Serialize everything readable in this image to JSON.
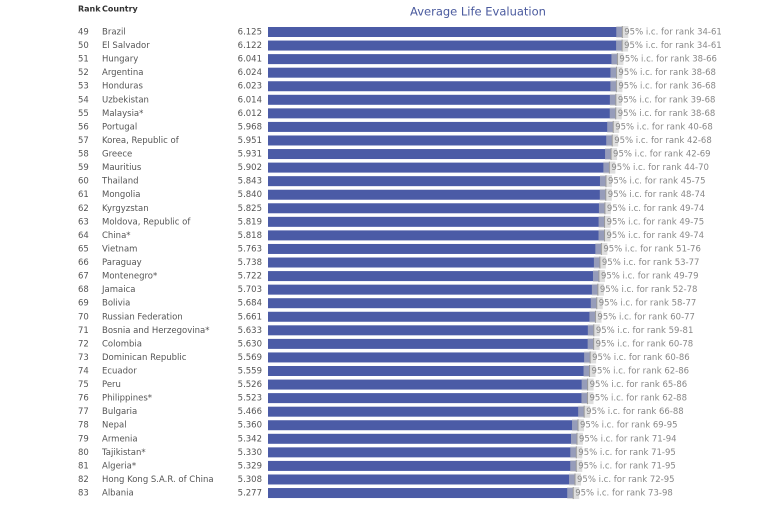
{
  "chart_data": {
    "type": "bar",
    "title": "Average Life Evaluation",
    "rank_header": "Rank",
    "country_header": "Country",
    "ranks": [
      49,
      50,
      51,
      52,
      53,
      54,
      55,
      56,
      57,
      58,
      59,
      60,
      61,
      62,
      63,
      64,
      65,
      66,
      67,
      68,
      69,
      70,
      71,
      72,
      73,
      74,
      75,
      76,
      77,
      78,
      79,
      80,
      81,
      82,
      83
    ],
    "categories": [
      "Brazil",
      "El Salvador",
      "Hungary",
      "Argentina",
      "Honduras",
      "Uzbekistan",
      "Malaysia*",
      "Portugal",
      "Korea, Republic of",
      "Greece",
      "Mauritius",
      "Thailand",
      "Mongolia",
      "Kyrgyzstan",
      "Moldova, Republic of",
      "China*",
      "Vietnam",
      "Paraguay",
      "Montenegro*",
      "Jamaica",
      "Bolivia",
      "Russian Federation",
      "Bosnia and Herzegovina*",
      "Colombia",
      "Dominican Republic",
      "Ecuador",
      "Peru",
      "Philippines*",
      "Bulgaria",
      "Nepal",
      "Armenia",
      "Tajikistan*",
      "Algeria*",
      "Hong Kong S.A.R. of China",
      "Albania"
    ],
    "values": [
      6.125,
      6.122,
      6.041,
      6.024,
      6.023,
      6.014,
      6.012,
      5.968,
      5.951,
      5.931,
      5.902,
      5.843,
      5.84,
      5.825,
      5.819,
      5.818,
      5.763,
      5.738,
      5.722,
      5.703,
      5.684,
      5.661,
      5.633,
      5.63,
      5.569,
      5.559,
      5.526,
      5.523,
      5.466,
      5.36,
      5.342,
      5.33,
      5.329,
      5.308,
      5.277
    ],
    "value_labels": [
      "6.125",
      "6.122",
      "6.041",
      "6.024",
      "6.023",
      "6.014",
      "6.012",
      "5.968",
      "5.951",
      "5.931",
      "5.902",
      "5.843",
      "5.840",
      "5.825",
      "5.819",
      "5.818",
      "5.763",
      "5.738",
      "5.722",
      "5.703",
      "5.684",
      "5.661",
      "5.633",
      "5.630",
      "5.569",
      "5.559",
      "5.526",
      "5.523",
      "5.466",
      "5.360",
      "5.342",
      "5.330",
      "5.329",
      "5.308",
      "5.277"
    ],
    "ci_labels": [
      "95% i.c. for rank 34-61",
      "95% i.c. for rank 34-61",
      "95% i.c. for rank 38-66",
      "95% i.c. for rank 38-68",
      "95% i.c. for rank 36-68",
      "95% i.c. for rank 39-68",
      "95% i.c. for rank 38-68",
      "95% i.c. for rank 40-68",
      "95% i.c. for rank 42-68",
      "95% i.c. for rank 42-69",
      "95% i.c. for rank 44-70",
      "95% i.c. for rank 45-75",
      "95% i.c. for rank 48-74",
      "95% i.c. for rank 49-74",
      "95% i.c. for rank 49-75",
      "95% i.c. for rank 49-74",
      "95% i.c. for rank 51-76",
      "95% i.c. for rank 53-77",
      "95% i.c. for rank 49-79",
      "95% i.c. for rank 52-78",
      "95% i.c. for rank 58-77",
      "95% i.c. for rank 60-77",
      "95% i.c. for rank 59-81",
      "95% i.c. for rank 60-78",
      "95% i.c. for rank 60-86",
      "95% i.c. for rank 62-86",
      "95% i.c. for rank 65-86",
      "95% i.c. for rank 62-88",
      "95% i.c. for rank 66-88",
      "95% i.c. for rank 69-95",
      "95% i.c. for rank 71-94",
      "95% i.c. for rank 71-95",
      "95% i.c. for rank 71-95",
      "95% i.c. for rank 72-95",
      "95% i.c. for rank 73-98"
    ],
    "color": "#4b5ba6",
    "xlim": [
      0,
      8.8
    ]
  }
}
